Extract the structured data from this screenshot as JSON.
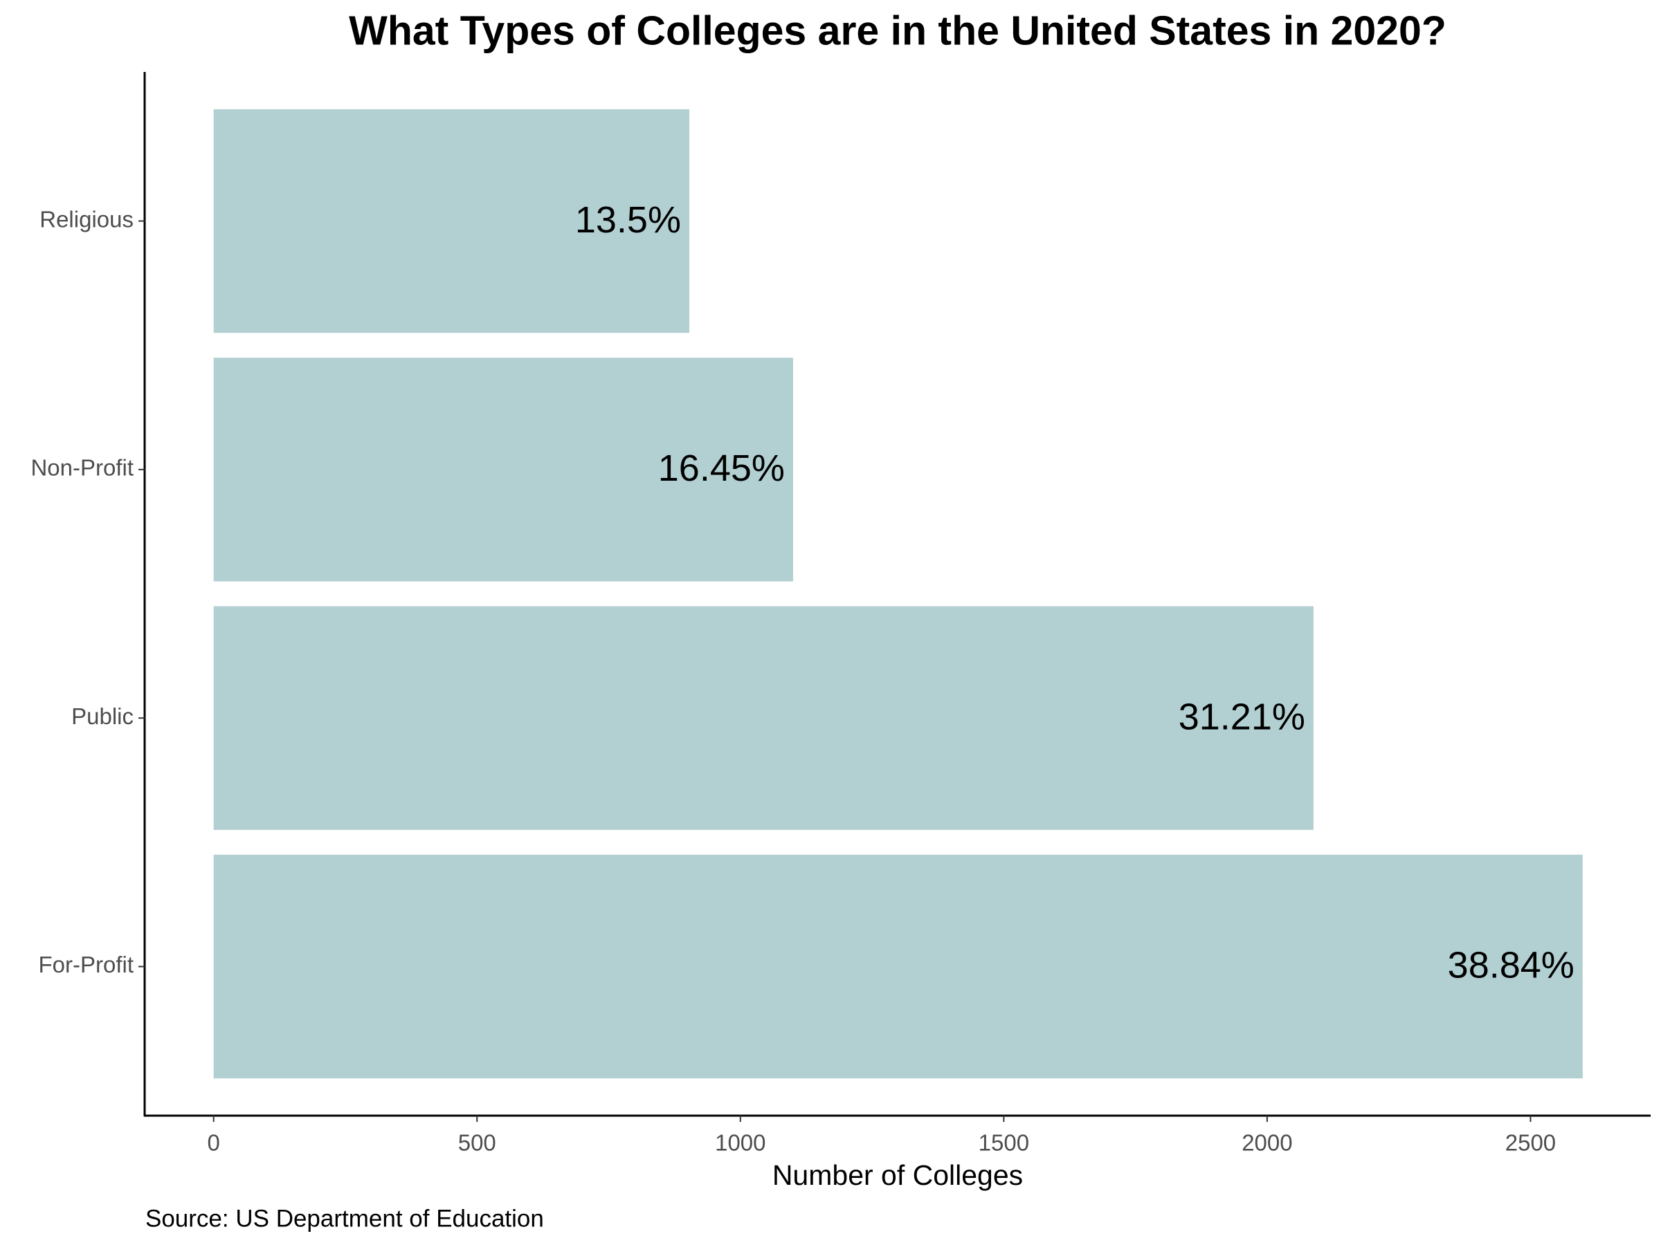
{
  "chart_data": {
    "type": "hbar",
    "title": "What Types of Colleges are in the United States in 2020?",
    "x_label": "Number of Colleges",
    "source": "Source: US Department of Education",
    "categories": [
      "Religious",
      "Non-Profit",
      "Public",
      "For-Profit"
    ],
    "values": [
      903,
      1100,
      2088,
      2599
    ],
    "shares": [
      13.5,
      16.45,
      31.21,
      38.84
    ],
    "share_labels": [
      "13.5%",
      "16.45%",
      "31.21%",
      "38.84%"
    ],
    "color": "#b2cfd1",
    "xlim": [
      -131,
      2728
    ],
    "xticks": [
      0,
      500,
      1000,
      1500,
      2000,
      2500
    ],
    "grid": false
  }
}
